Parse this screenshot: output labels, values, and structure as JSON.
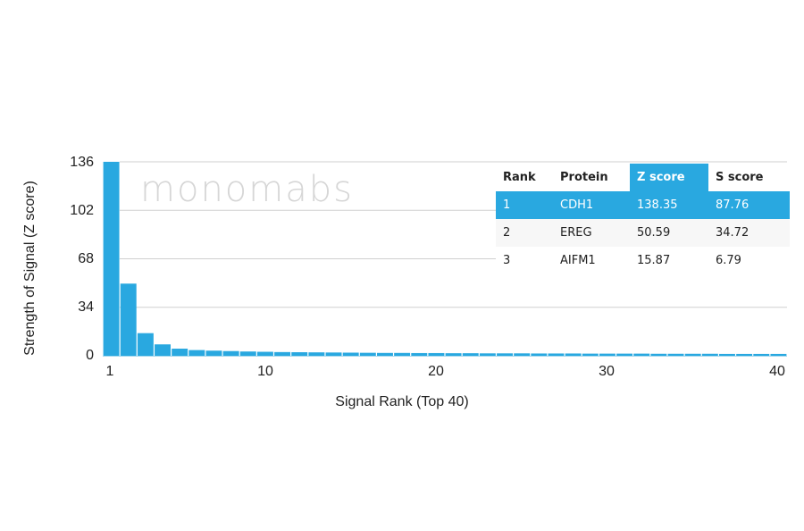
{
  "chart_data": {
    "type": "bar",
    "title": "",
    "xlabel": "Signal Rank (Top 40)",
    "ylabel": "Strength of Signal (Z score)",
    "ylim": [
      0,
      136
    ],
    "yticks": [
      0,
      34,
      68,
      102,
      136
    ],
    "xticks": [
      1,
      10,
      20,
      30,
      40
    ],
    "grid": true,
    "bar_color": "#29a8e0",
    "categories": [
      1,
      2,
      3,
      4,
      5,
      6,
      7,
      8,
      9,
      10,
      11,
      12,
      13,
      14,
      15,
      16,
      17,
      18,
      19,
      20,
      21,
      22,
      23,
      24,
      25,
      26,
      27,
      28,
      29,
      30,
      31,
      32,
      33,
      34,
      35,
      36,
      37,
      38,
      39,
      40
    ],
    "values": [
      138.35,
      50.59,
      15.87,
      8.0,
      5.0,
      4.0,
      3.6,
      3.3,
      3.0,
      2.8,
      2.6,
      2.5,
      2.4,
      2.3,
      2.2,
      2.1,
      2.0,
      2.0,
      1.9,
      1.9,
      1.8,
      1.8,
      1.7,
      1.7,
      1.7,
      1.6,
      1.6,
      1.6,
      1.5,
      1.5,
      1.5,
      1.5,
      1.4,
      1.4,
      1.4,
      1.4,
      1.3,
      1.3,
      1.3,
      1.3
    ],
    "table": {
      "columns": [
        "Rank",
        "Protein",
        "Z score",
        "S score"
      ],
      "highlight_column": "Z score",
      "rows": [
        {
          "rank": "1",
          "protein": "CDH1",
          "z": "138.35",
          "s": "87.76"
        },
        {
          "rank": "2",
          "protein": "EREG",
          "z": "50.59",
          "s": "34.72"
        },
        {
          "rank": "3",
          "protein": "AIFM1",
          "z": "15.87",
          "s": "6.79"
        }
      ]
    }
  },
  "watermark": "monomabs",
  "axis": {
    "ylabel": "Strength of Signal (Z score)",
    "xlabel": "Signal Rank (Top 40)",
    "yticks": [
      "136",
      "102",
      "68",
      "34",
      "0"
    ],
    "xticks": [
      "1",
      "10",
      "20",
      "30",
      "40"
    ]
  },
  "table": {
    "headers": {
      "rank": "Rank",
      "protein": "Protein",
      "z": "Z score",
      "s": "S score"
    },
    "rows": [
      {
        "rank": "1",
        "protein": "CDH1",
        "z": "138.35",
        "s": "87.76"
      },
      {
        "rank": "2",
        "protein": "EREG",
        "z": "50.59",
        "s": "34.72"
      },
      {
        "rank": "3",
        "protein": "AIFM1",
        "z": "15.87",
        "s": "6.79"
      }
    ]
  }
}
